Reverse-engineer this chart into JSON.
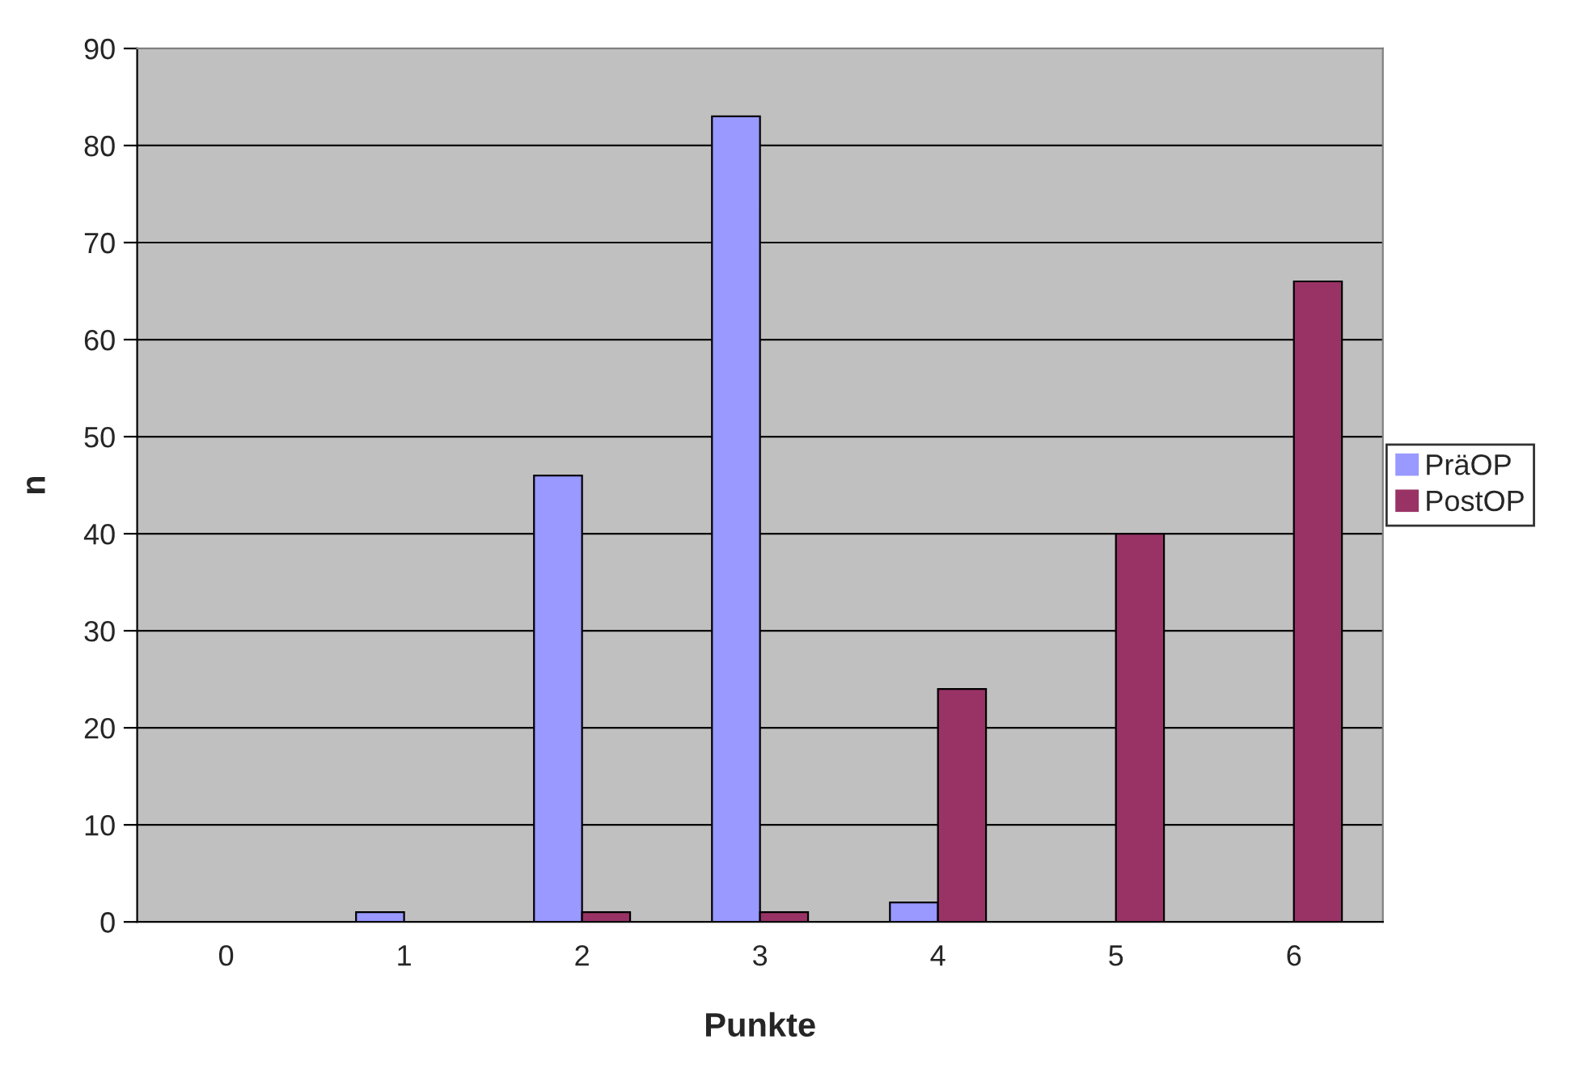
{
  "chart_data": {
    "type": "bar",
    "xlabel": "Punkte",
    "ylabel": "n",
    "categories": [
      "0",
      "1",
      "2",
      "3",
      "4",
      "5",
      "6"
    ],
    "series": [
      {
        "name": "PräOP",
        "color": "#9999ff",
        "values": [
          0,
          1,
          46,
          83,
          2,
          0,
          0
        ]
      },
      {
        "name": "PostOP",
        "color": "#993366",
        "values": [
          0,
          0,
          1,
          1,
          24,
          40,
          66
        ]
      }
    ],
    "ylim": [
      0,
      90
    ],
    "yticks": [
      0,
      10,
      20,
      30,
      40,
      50,
      60,
      70,
      80,
      90
    ],
    "grid": "y",
    "legend": "right"
  }
}
